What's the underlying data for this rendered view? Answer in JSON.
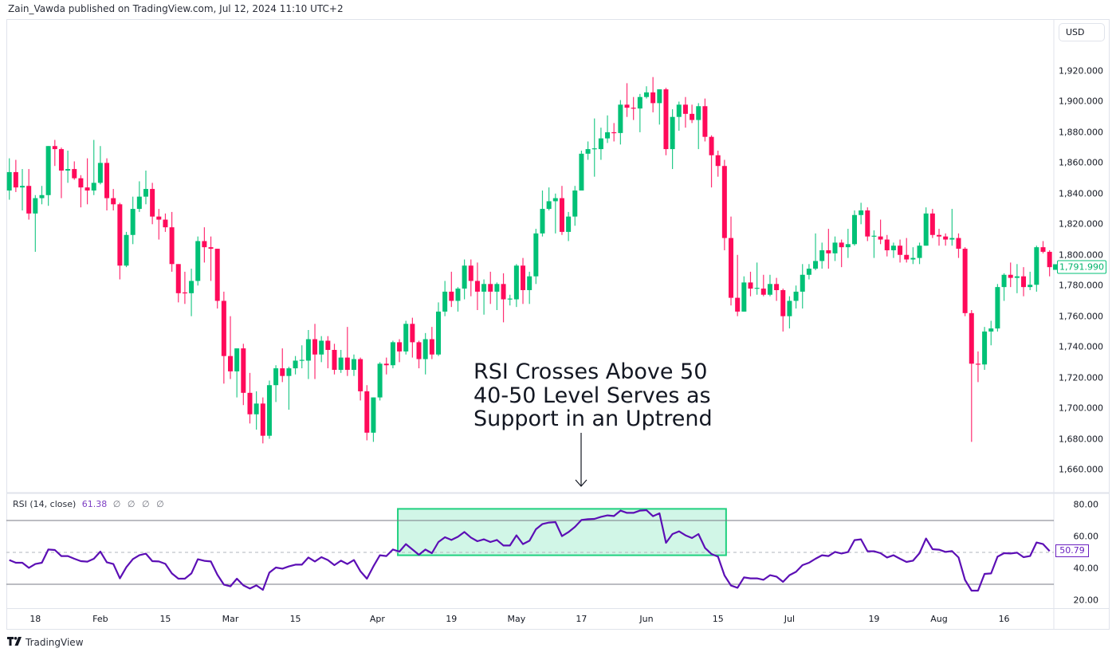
{
  "header": {
    "publisher_text": "Zain_Vawda published on TradingView.com, Jul 12, 2024 11:10 UTC+2"
  },
  "currency_button": "USD",
  "footer": {
    "brand": "TradingView",
    "logo_icon": "tradingview-logo-icon"
  },
  "colors": {
    "up": "#00c176",
    "down": "#ff0a5a",
    "rsi_line": "#5c0fb5",
    "zone_border": "#1fd07f",
    "zone_fill": "rgba(0,205,120,0.18)",
    "level_line": "#787b86",
    "mid_line": "#b2b5be"
  },
  "price_axis": {
    "ticks": [
      "1,920.000",
      "1,900.000",
      "1,880.000",
      "1,860.000",
      "1,840.000",
      "1,820.000",
      "1,800.000",
      "1,780.000",
      "1,760.000",
      "1,740.000",
      "1,720.000",
      "1,700.000",
      "1,680.000",
      "1,660.000"
    ],
    "last_price_label": "1,791.990"
  },
  "rsi_panel": {
    "legend": {
      "name": "RSI (14, close)",
      "value": "61.38",
      "empty_values": [
        "∅",
        "∅",
        "∅",
        "∅"
      ]
    },
    "ticks": [
      "80.00",
      "60.00",
      "40.00",
      "20.00"
    ],
    "last_value_label": "50.79"
  },
  "annotation": {
    "lines": [
      "RSI Crosses Above 50",
      "40-50 Level Serves as",
      "Support in an Uptrend"
    ],
    "arrow_icon": "arrow-down-icon"
  },
  "chart_data": [
    {
      "type": "candlestick",
      "title": "",
      "ylim": [
        1650,
        1930
      ],
      "y_ticks": [
        1920,
        1900,
        1880,
        1860,
        1840,
        1820,
        1800,
        1780,
        1760,
        1740,
        1720,
        1700,
        1680,
        1660
      ],
      "x_ticks": [
        {
          "label": "18",
          "bar": 4
        },
        {
          "label": "Feb",
          "bar": 14
        },
        {
          "label": "15",
          "bar": 24
        },
        {
          "label": "Mar",
          "bar": 34
        },
        {
          "label": "15",
          "bar": 44
        },
        {
          "label": "Apr",
          "bar": 56.6
        },
        {
          "label": "19",
          "bar": 68
        },
        {
          "label": "May",
          "bar": 78
        },
        {
          "label": "17",
          "bar": 88
        },
        {
          "label": "Jun",
          "bar": 98
        },
        {
          "label": "15",
          "bar": 109
        },
        {
          "label": "Jul",
          "bar": 120
        },
        {
          "label": "19",
          "bar": 133
        },
        {
          "label": "Aug",
          "bar": 143
        },
        {
          "label": "16",
          "bar": 153
        }
      ],
      "last_price": 1791.99,
      "ohlc": [
        [
          1842,
          1863,
          1836,
          1854
        ],
        [
          1854,
          1862,
          1841,
          1844
        ],
        [
          1844,
          1856,
          1829,
          1845
        ],
        [
          1845,
          1856,
          1823,
          1827
        ],
        [
          1827,
          1839,
          1802,
          1837
        ],
        [
          1837,
          1845,
          1833,
          1839
        ],
        [
          1839,
          1871,
          1832,
          1871
        ],
        [
          1871,
          1875,
          1858,
          1869
        ],
        [
          1869,
          1870,
          1837,
          1855
        ],
        [
          1855,
          1868,
          1847,
          1856
        ],
        [
          1856,
          1861,
          1849,
          1850
        ],
        [
          1850,
          1852,
          1831,
          1844
        ],
        [
          1844,
          1863,
          1833,
          1842
        ],
        [
          1842,
          1875,
          1839,
          1847
        ],
        [
          1847,
          1871,
          1846,
          1860
        ],
        [
          1860,
          1863,
          1829,
          1837
        ],
        [
          1837,
          1843,
          1829,
          1833
        ],
        [
          1833,
          1834,
          1784,
          1793
        ],
        [
          1793,
          1815,
          1792,
          1813
        ],
        [
          1813,
          1838,
          1807,
          1830
        ],
        [
          1830,
          1848,
          1828,
          1838
        ],
        [
          1838,
          1855,
          1833,
          1843
        ],
        [
          1843,
          1847,
          1820,
          1825
        ],
        [
          1825,
          1830,
          1810,
          1823
        ],
        [
          1823,
          1827,
          1815,
          1818
        ],
        [
          1818,
          1828,
          1789,
          1794
        ],
        [
          1794,
          1794,
          1769,
          1775
        ],
        [
          1775.5,
          1789,
          1768,
          1775
        ],
        [
          1775,
          1791,
          1760,
          1783
        ],
        [
          1783,
          1812,
          1780,
          1809
        ],
        [
          1809,
          1818,
          1795,
          1805
        ],
        [
          1805,
          1812,
          1783,
          1804
        ],
        [
          1804,
          1804,
          1765,
          1770
        ],
        [
          1770,
          1776,
          1716,
          1734
        ],
        [
          1734,
          1760,
          1719,
          1724
        ],
        [
          1724,
          1739,
          1707,
          1739
        ],
        [
          1739,
          1742,
          1702,
          1710
        ],
        [
          1710,
          1723,
          1690,
          1696
        ],
        [
          1696,
          1711,
          1686,
          1703
        ],
        [
          1703,
          1707,
          1677,
          1682
        ],
        [
          1682,
          1718,
          1680,
          1715
        ],
        [
          1715,
          1728,
          1704,
          1726
        ],
        [
          1726,
          1739,
          1717,
          1721
        ],
        [
          1721,
          1727,
          1699,
          1726
        ],
        [
          1726,
          1734,
          1722,
          1731
        ],
        [
          1731,
          1741,
          1726,
          1731.5
        ],
        [
          1731,
          1751,
          1719,
          1745
        ],
        [
          1745,
          1755,
          1719,
          1735
        ],
        [
          1735,
          1747,
          1730,
          1744
        ],
        [
          1744,
          1747,
          1726,
          1738
        ],
        [
          1738,
          1742,
          1722,
          1725
        ],
        [
          1725,
          1738,
          1723,
          1733
        ],
        [
          1733,
          1753,
          1721,
          1725
        ],
        [
          1725,
          1735,
          1721,
          1732
        ],
        [
          1732,
          1733,
          1705,
          1711
        ],
        [
          1711,
          1715,
          1679,
          1684
        ],
        [
          1684,
          1707,
          1678,
          1707
        ],
        [
          1707,
          1730,
          1705,
          1729
        ],
        [
          1729,
          1733,
          1722,
          1728
        ],
        [
          1728,
          1744,
          1726,
          1743
        ],
        [
          1743,
          1745,
          1730,
          1737
        ],
        [
          1737,
          1757,
          1735,
          1755
        ],
        [
          1755,
          1759,
          1733,
          1743
        ],
        [
          1743,
          1744,
          1726,
          1732
        ],
        [
          1732,
          1749,
          1722,
          1745
        ],
        [
          1745,
          1753,
          1732,
          1735
        ],
        [
          1735,
          1769,
          1734,
          1763
        ],
        [
          1763,
          1783,
          1760,
          1776
        ],
        [
          1776,
          1789,
          1766,
          1770
        ],
        [
          1770,
          1779,
          1763,
          1778
        ],
        [
          1778,
          1797,
          1771,
          1793
        ],
        [
          1793,
          1797,
          1773,
          1783
        ],
        [
          1783,
          1795,
          1764,
          1776
        ],
        [
          1776,
          1784,
          1761,
          1781
        ],
        [
          1781,
          1789,
          1768,
          1776
        ],
        [
          1776,
          1782,
          1764,
          1781
        ],
        [
          1781,
          1788,
          1756,
          1771
        ],
        [
          1771,
          1774,
          1767,
          1771.5
        ],
        [
          1771,
          1794,
          1766,
          1793
        ],
        [
          1793,
          1798,
          1768,
          1777
        ],
        [
          1777,
          1789,
          1768,
          1786
        ],
        [
          1786,
          1817,
          1781,
          1814
        ],
        [
          1814,
          1842,
          1812,
          1830
        ],
        [
          1830,
          1844,
          1829,
          1835
        ],
        [
          1835,
          1840,
          1814,
          1837
        ],
        [
          1837,
          1845,
          1813,
          1815
        ],
        [
          1815,
          1828,
          1809,
          1825
        ],
        [
          1825,
          1845,
          1819,
          1842
        ],
        [
          1842,
          1868,
          1842,
          1866
        ],
        [
          1866,
          1874,
          1862,
          1869
        ],
        [
          1869,
          1889,
          1851,
          1869.5
        ],
        [
          1869,
          1883,
          1862,
          1876
        ],
        [
          1876,
          1891,
          1873,
          1880
        ],
        [
          1880,
          1886,
          1874,
          1879.5
        ],
        [
          1879.5,
          1901,
          1872,
          1898
        ],
        [
          1898,
          1912,
          1890,
          1896
        ],
        [
          1896,
          1903,
          1888,
          1895.5
        ],
        [
          1895.5,
          1905,
          1880,
          1903
        ],
        [
          1903,
          1910,
          1902,
          1906
        ],
        [
          1906,
          1916,
          1893,
          1899
        ],
        [
          1899,
          1908,
          1885,
          1908
        ],
        [
          1908,
          1909,
          1865,
          1869
        ],
        [
          1869,
          1895,
          1856,
          1890
        ],
        [
          1890,
          1900,
          1881,
          1898
        ],
        [
          1898,
          1903,
          1883,
          1892
        ],
        [
          1892,
          1898,
          1886,
          1888
        ],
        [
          1888,
          1899,
          1869,
          1897
        ],
        [
          1897,
          1902,
          1874,
          1877
        ],
        [
          1877,
          1878,
          1844,
          1865
        ],
        [
          1865,
          1868,
          1851,
          1858
        ],
        [
          1858,
          1862,
          1803,
          1811
        ],
        [
          1811,
          1825,
          1767,
          1772
        ],
        [
          1772,
          1800,
          1760,
          1763
        ],
        [
          1763,
          1786,
          1763,
          1782
        ],
        [
          1782,
          1789,
          1773,
          1778
        ],
        [
          1778,
          1795,
          1774,
          1778.5
        ],
        [
          1778,
          1787,
          1773,
          1774
        ],
        [
          1774,
          1787,
          1773,
          1781
        ],
        [
          1781,
          1785,
          1770,
          1777
        ],
        [
          1777,
          1778,
          1750,
          1760
        ],
        [
          1760,
          1773,
          1752,
          1770
        ],
        [
          1770,
          1780,
          1765,
          1776
        ],
        [
          1776,
          1794,
          1765,
          1787
        ],
        [
          1787,
          1794,
          1784,
          1791
        ],
        [
          1791,
          1814,
          1790,
          1796
        ],
        [
          1796,
          1808,
          1791,
          1803
        ],
        [
          1803,
          1817,
          1791,
          1801
        ],
        [
          1801,
          1812,
          1796,
          1808
        ],
        [
          1808,
          1810,
          1792,
          1805
        ],
        [
          1805,
          1817,
          1798,
          1807
        ],
        [
          1807,
          1829,
          1806,
          1826
        ],
        [
          1826,
          1834,
          1820,
          1829
        ],
        [
          1829,
          1831,
          1809,
          1812
        ],
        [
          1812,
          1816,
          1798,
          1812.5
        ],
        [
          1812,
          1823,
          1807,
          1810
        ],
        [
          1810,
          1813,
          1799,
          1803
        ],
        [
          1803,
          1808,
          1798,
          1806
        ],
        [
          1806,
          1810,
          1795,
          1800
        ],
        [
          1800,
          1811,
          1795,
          1797
        ],
        [
          1797,
          1805,
          1794,
          1798
        ],
        [
          1798,
          1808,
          1794,
          1806
        ],
        [
          1806,
          1831,
          1806,
          1827
        ],
        [
          1827,
          1830,
          1811,
          1813
        ],
        [
          1813,
          1817,
          1806,
          1812
        ],
        [
          1812,
          1814,
          1806,
          1810
        ],
        [
          1810,
          1830,
          1806,
          1811
        ],
        [
          1811,
          1814,
          1798,
          1804
        ],
        [
          1804,
          1805,
          1760,
          1762
        ],
        [
          1762,
          1764,
          1678,
          1729
        ],
        [
          1729,
          1737,
          1717,
          1728.5
        ],
        [
          1728.5,
          1753,
          1725,
          1750
        ],
        [
          1750,
          1757,
          1741,
          1752
        ],
        [
          1752,
          1781,
          1750,
          1779
        ],
        [
          1779,
          1788,
          1770,
          1787
        ],
        [
          1787,
          1795,
          1779,
          1785
        ],
        [
          1785,
          1794,
          1775,
          1786
        ],
        [
          1786,
          1792,
          1773,
          1779
        ],
        [
          1779,
          1789,
          1777,
          1780.5
        ],
        [
          1780.5,
          1806,
          1776,
          1805
        ],
        [
          1805,
          1809,
          1801,
          1802
        ],
        [
          1802,
          1803,
          1786,
          1792
        ]
      ]
    },
    {
      "type": "line",
      "title": "RSI (14, close)",
      "ylim": [
        12,
        85
      ],
      "y_ticks": [
        80,
        60,
        40,
        20
      ],
      "levels": {
        "upper": 70,
        "middle": 50,
        "lower": 30
      },
      "highlight_zone": {
        "from_bar": 60,
        "to_bar": 110,
        "low": 48.2,
        "high": 77.3
      },
      "values": [
        45.2,
        43.5,
        43.5,
        40.3,
        42.7,
        43.5,
        51.8,
        51.5,
        47.7,
        47.7,
        46,
        44.5,
        44.2,
        46,
        50.5,
        43.8,
        42.7,
        33.7,
        40.7,
        45.8,
        48.2,
        49.2,
        44.5,
        44.3,
        42.8,
        36.8,
        33.5,
        33.5,
        36.8,
        45.7,
        44.7,
        44.3,
        36,
        29.8,
        28.7,
        33.5,
        29.3,
        27.3,
        29.3,
        26.5,
        37.3,
        40.5,
        39.8,
        41.2,
        42.3,
        42.3,
        46.8,
        44.3,
        47,
        45.2,
        42,
        44.8,
        42.7,
        45.2,
        38.2,
        33.5,
        41.2,
        48.2,
        47.7,
        51.8,
        50.5,
        55.2,
        51.8,
        48.5,
        51.8,
        49.5,
        56.5,
        59.5,
        57.8,
        59.8,
        62.8,
        59.3,
        57,
        58.2,
        56.5,
        57.8,
        54.3,
        54.3,
        60.7,
        55.2,
        57.3,
        64.5,
        67.8,
        68.7,
        69,
        60.2,
        62.7,
        66,
        70.3,
        70.8,
        71,
        72.3,
        73.2,
        72.8,
        76.2,
        74.8,
        74.8,
        76.2,
        76.5,
        72.7,
        74.5,
        56,
        61.5,
        63.2,
        60.7,
        59,
        61.5,
        52.8,
        49,
        47.3,
        35.5,
        29.2,
        27.8,
        34.3,
        33.7,
        33.7,
        32.8,
        35.7,
        34.8,
        31.5,
        35.7,
        37.8,
        42,
        43.5,
        46,
        48.2,
        47.7,
        50.3,
        49.3,
        50.2,
        57.7,
        58.2,
        50.7,
        50.7,
        49.5,
        46.8,
        48.2,
        46,
        44,
        44.8,
        49.5,
        58.7,
        52,
        51.7,
        50.3,
        50.8,
        46.8,
        32.7,
        26,
        26,
        36.5,
        36.8,
        47.3,
        49.5,
        49.3,
        49.8,
        47,
        47.7,
        56.2,
        55.2,
        50.79
      ]
    }
  ]
}
